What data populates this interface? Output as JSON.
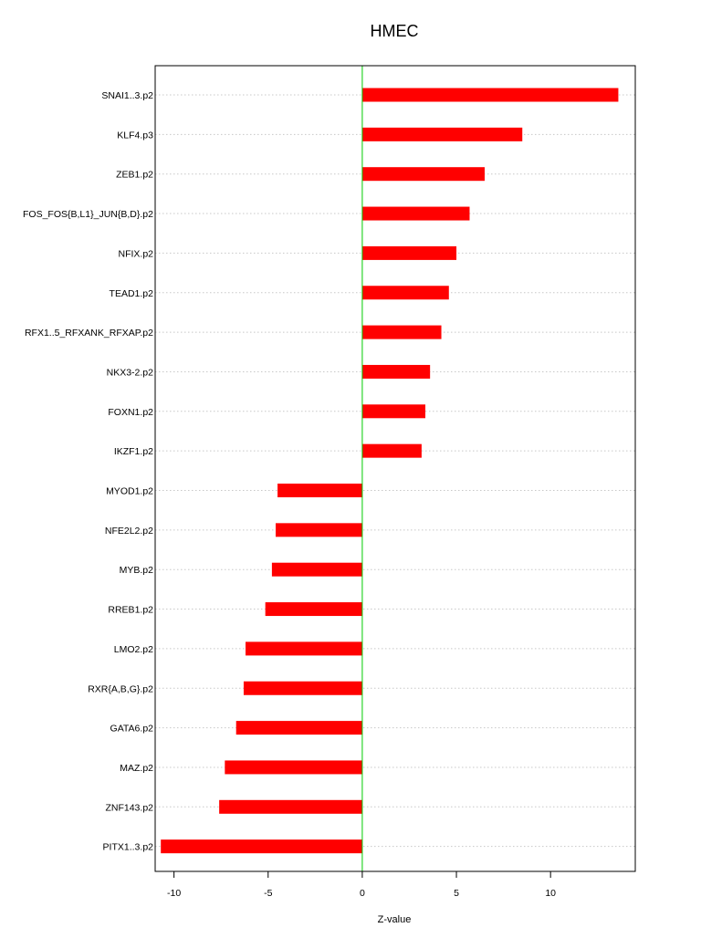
{
  "chart_data": {
    "type": "bar",
    "orientation": "horizontal",
    "title": "HMEC",
    "xlabel": "Z-value",
    "ylabel": "",
    "xlim": [
      -11.0,
      14.5
    ],
    "xticks": [
      -10,
      -5,
      0,
      5,
      10
    ],
    "xtick_labels": [
      "-10",
      "-5",
      "0",
      "5",
      "10"
    ],
    "grid": "horizontal dotted",
    "zero_line_color": "#00cc00",
    "bar_color": "#ff0000",
    "categories": [
      "SNAI1..3.p2",
      "KLF4.p3",
      "ZEB1.p2",
      "FOS_FOS{B,L1}_JUN{B,D}.p2",
      "NFIX.p2",
      "TEAD1.p2",
      "RFX1..5_RFXANK_RFXAP.p2",
      "NKX3-2.p2",
      "FOXN1.p2",
      "IKZF1.p2",
      "MYOD1.p2",
      "NFE2L2.p2",
      "MYB.p2",
      "RREB1.p2",
      "LMO2.p2",
      "RXR{A,B,G}.p2",
      "GATA6.p2",
      "MAZ.p2",
      "ZNF143.p2",
      "PITX1..3.p2"
    ],
    "values": [
      13.6,
      8.5,
      6.5,
      5.7,
      5.0,
      4.6,
      4.2,
      3.6,
      3.35,
      3.15,
      -4.5,
      -4.6,
      -4.8,
      -5.15,
      -6.2,
      -6.3,
      -6.7,
      -7.3,
      -7.6,
      -10.7
    ]
  }
}
